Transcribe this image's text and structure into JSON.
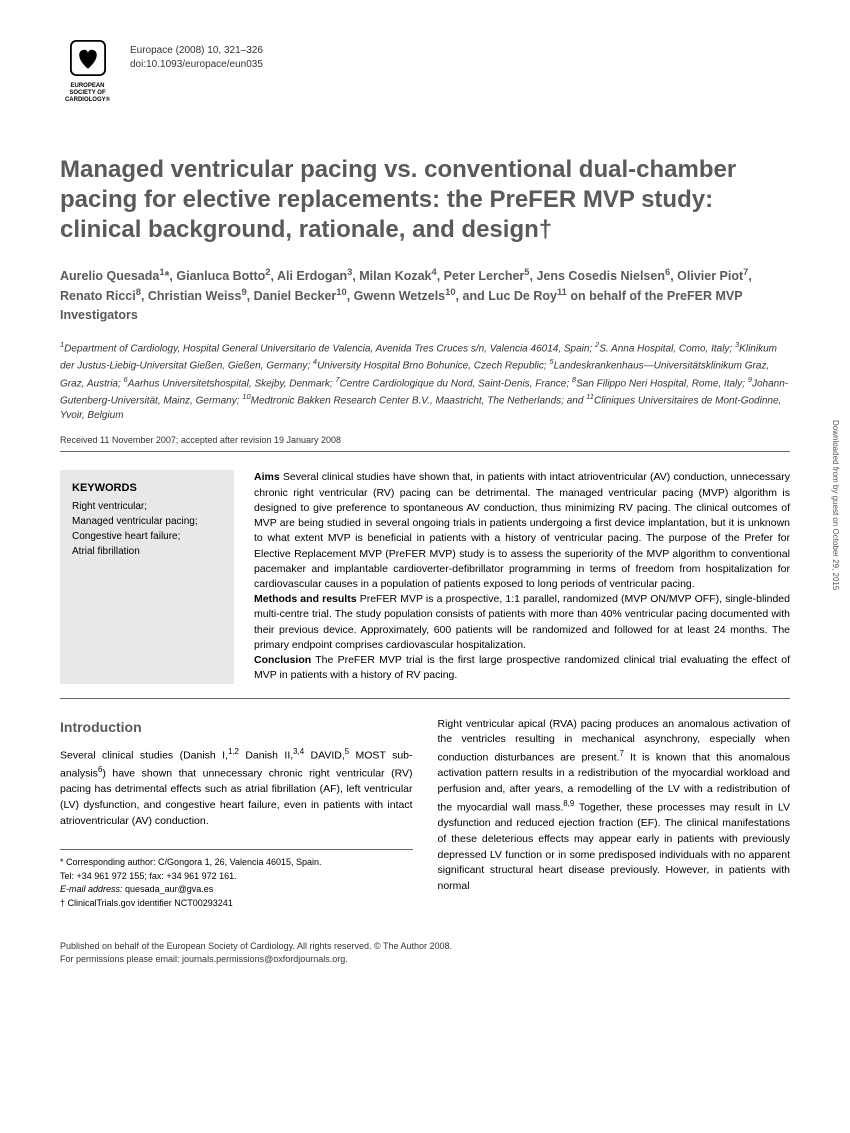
{
  "journal": {
    "name_line": "Europace (2008) 10, 321–326",
    "doi_line": "doi:10.1093/europace/eun035",
    "logo_text": "EUROPEAN SOCIETY OF CARDIOLOGY®"
  },
  "title": "Managed ventricular pacing vs. conventional dual-chamber pacing for elective replacements: the PreFER MVP study: clinical background, rationale, and design†",
  "authors_html": "Aurelio Quesada<sup>1</sup>*, Gianluca Botto<sup>2</sup>, Ali Erdogan<sup>3</sup>, Milan Kozak<sup>4</sup>, Peter Lercher<sup>5</sup>, Jens Cosedis Nielsen<sup>6</sup>, Olivier Piot<sup>7</sup>, Renato Ricci<sup>8</sup>, Christian Weiss<sup>9</sup>, Daniel Becker<sup>10</sup>, Gwenn Wetzels<sup>10</sup>, and Luc De Roy<sup>11</sup> on behalf of the PreFER MVP Investigators",
  "affiliations_html": "<sup>1</sup>Department of Cardiology, Hospital General Universitario de Valencia, Avenida Tres Cruces s/n, Valencia 46014, Spain; <sup>2</sup>S. Anna Hospital, Como, Italy; <sup>3</sup>Klinikum der Justus-Liebig-Universitat Gießen, Gießen, Germany; <sup>4</sup>University Hospital Brno Bohunice, Czech Republic; <sup>5</sup>Landeskrankenhaus—Universitätsklinikum Graz, Graz, Austria; <sup>6</sup>Aarhus Universitetshospital, Skejby, Denmark; <sup>7</sup>Centre Cardiologique du Nord, Saint-Denis, France; <sup>8</sup>San Filippo Neri Hospital, Rome, Italy; <sup>9</sup>Johann-Gutenberg-Universität, Mainz, Germany; <sup>10</sup>Medtronic Bakken Research Center B.V., Maastricht, The Netherlands; and <sup>11</sup>Cliniques Universitaires de Mont-Godinne, Yvoir, Belgium",
  "dates": "Received 11 November 2007; accepted after revision 19 January 2008",
  "keywords": {
    "title": "KEYWORDS",
    "items": "Right ventricular;\nManaged ventricular pacing;\nCongestive heart failure;\nAtrial fibrillation"
  },
  "abstract_html": "<b>Aims</b> Several clinical studies have shown that, in patients with intact atrioventricular (AV) conduction, unnecessary chronic right ventricular (RV) pacing can be detrimental. The managed ventricular pacing (MVP) algorithm is designed to give preference to spontaneous AV conduction, thus minimizing RV pacing. The clinical outcomes of MVP are being studied in several ongoing trials in patients undergoing a first device implantation, but it is unknown to what extent MVP is beneficial in patients with a history of ventricular pacing. The purpose of the Prefer for Elective Replacement MVP (PreFER MVP) study is to assess the superiority of the MVP algorithm to conventional pacemaker and implantable cardioverter-defibrillator programming in terms of freedom from hospitalization for cardiovascular causes in a population of patients exposed to long periods of ventricular pacing.<br><b>Methods and results</b> PreFER MVP is a prospective, 1:1 parallel, randomized (MVP ON/MVP OFF), single-blinded multi-centre trial. The study population consists of patients with more than 40% ventricular pacing documented with their previous device. Approximately, 600 patients will be randomized and followed for at least 24 months. The primary endpoint comprises cardiovascular hospitalization.<br><b>Conclusion</b> The PreFER MVP trial is the first large prospective randomized clinical trial evaluating the effect of MVP in patients with a history of RV pacing.",
  "intro": {
    "heading": "Introduction",
    "col1_html": "Several clinical studies (Danish I,<sup>1,2</sup> Danish II,<sup>3,4</sup> DAVID,<sup>5</sup> MOST sub-analysis<sup>6</sup>) have shown that unnecessary chronic right ventricular (RV) pacing has detrimental effects such as atrial fibrillation (AF), left ventricular (LV) dysfunction, and congestive heart failure, even in patients with intact atrioventricular (AV) conduction.",
    "col2_html": "Right ventricular apical (RVA) pacing produces an anomalous activation of the ventricles resulting in mechanical asynchrony, especially when conduction disturbances are present.<sup>7</sup> It is known that this anomalous activation pattern results in a redistribution of the myocardial workload and perfusion and, after years, a remodelling of the LV with a redistribution of the myocardial wall mass.<sup>8,9</sup> Together, these processes may result in LV dysfunction and reduced ejection fraction (EF). The clinical manifestations of these deleterious effects may appear early in patients with previously depressed LV function or in some predisposed individuals with no apparent significant structural heart disease previously. However, in patients with normal"
  },
  "footnotes": {
    "corr": "* Corresponding author: C/Gongora 1, 26, Valencia 46015, Spain.",
    "tel": "Tel: +34 961 972 155; fax: +34 961 972 161.",
    "email_label": "E-mail address:",
    "email": "quesada_aur@gva.es",
    "trial": "† ClinicalTrials.gov identifier NCT00293241"
  },
  "footer": {
    "line1": "Published on behalf of the European Society of Cardiology. All rights reserved. © The Author 2008.",
    "line2": "For permissions please email: journals.permissions@oxfordjournals.org."
  },
  "side_text": "Downloaded from by guest on October 29, 2015"
}
